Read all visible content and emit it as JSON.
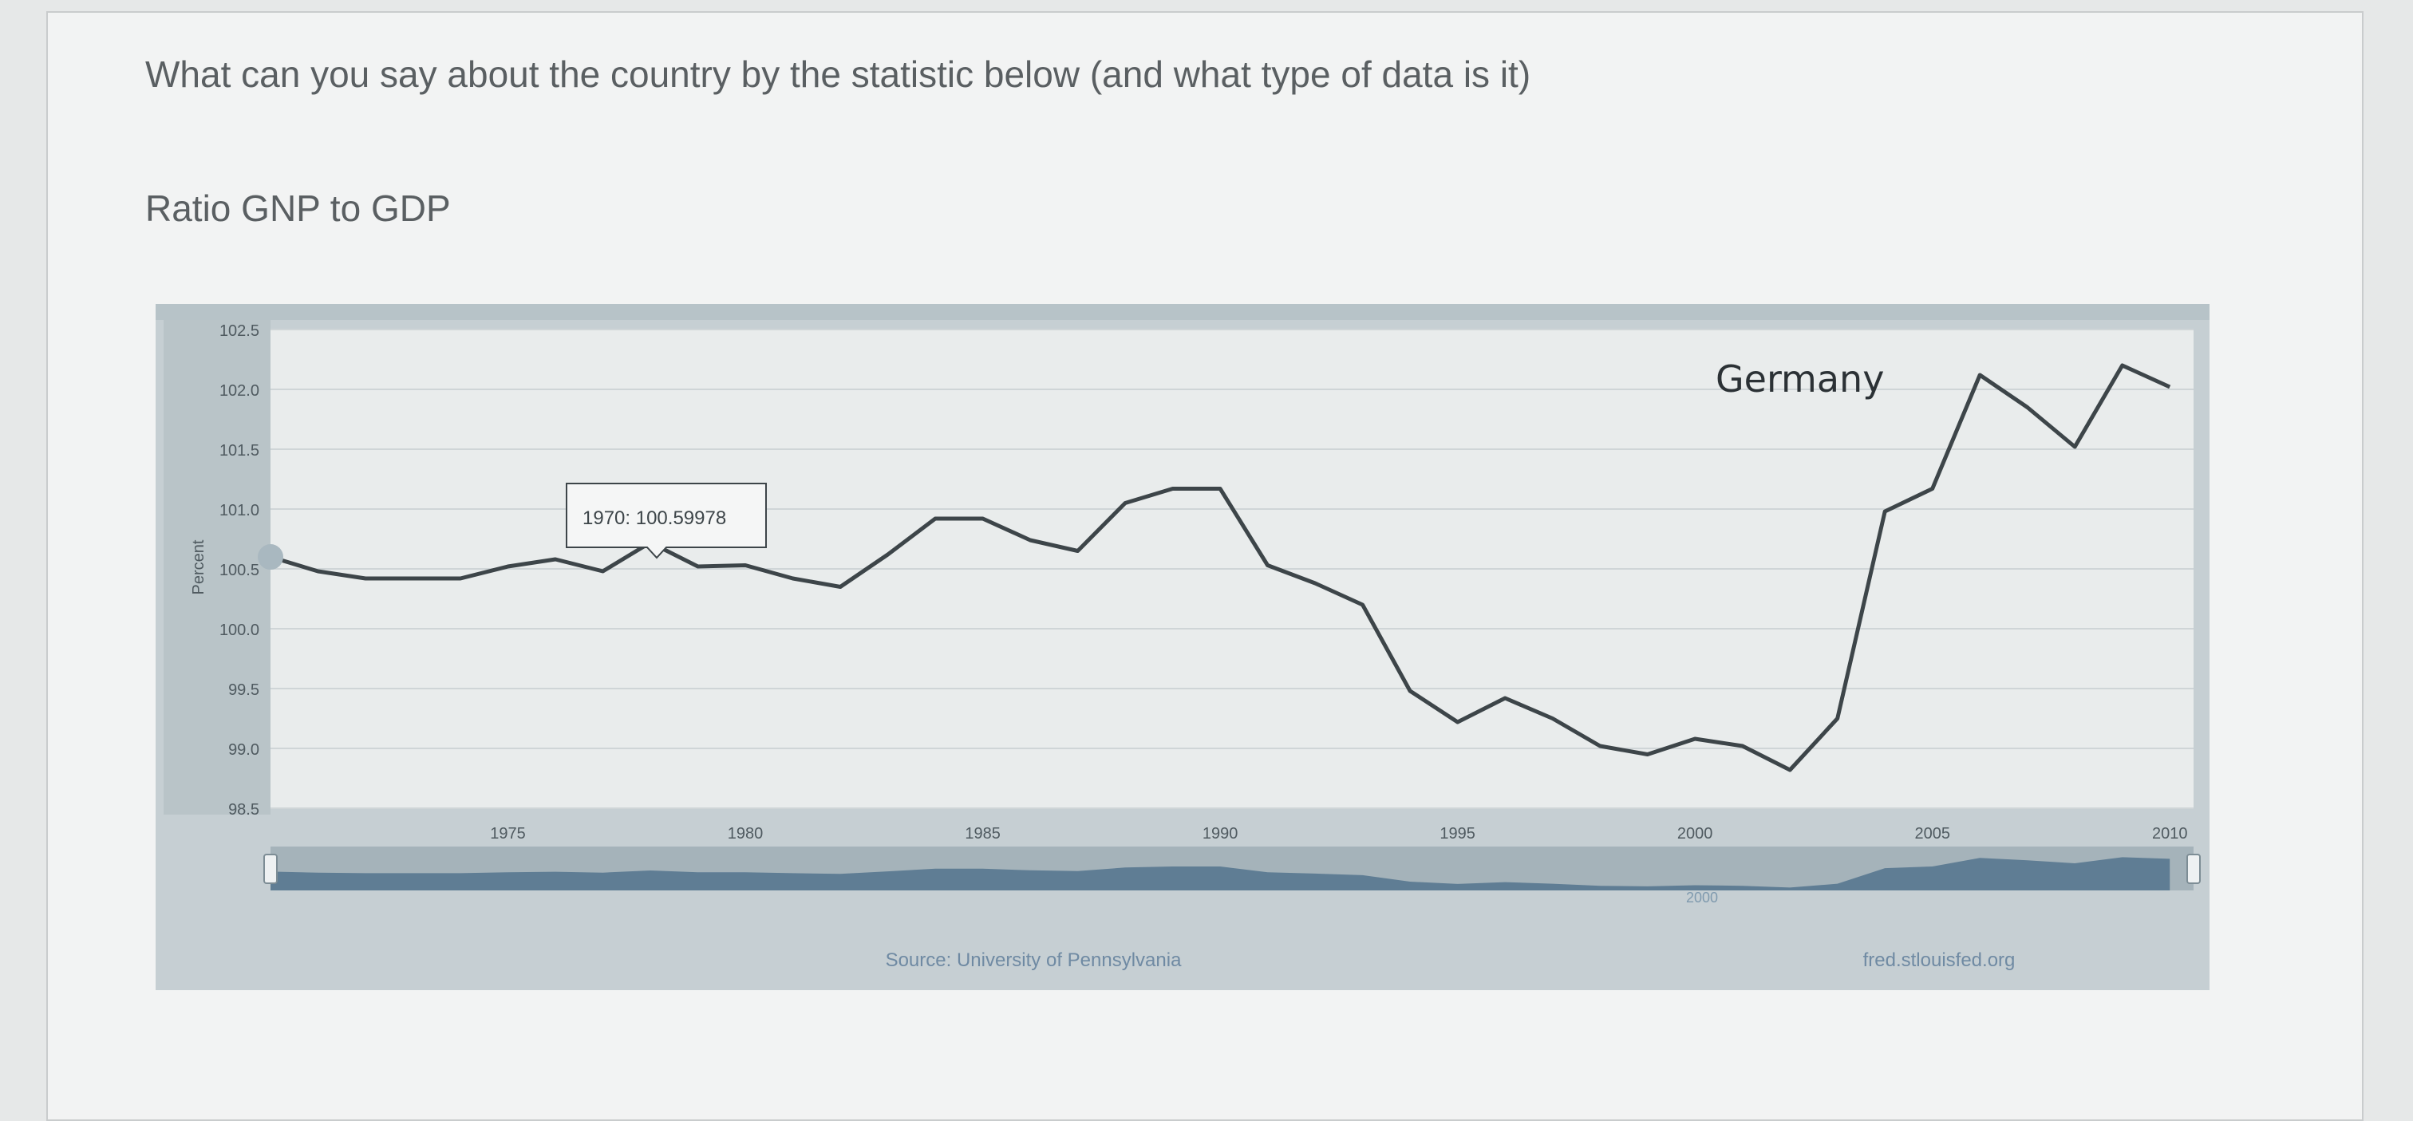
{
  "question": "What can you say about the country by the statistic below (and what type of data is it)",
  "chart_heading": "Ratio GNP to GDP",
  "chart_data": {
    "type": "line",
    "title": "",
    "country_label": "Germany",
    "ylabel": "Percent",
    "xlabel": "",
    "ylim": [
      98.5,
      102.5
    ],
    "xlim": [
      1970,
      2010.5
    ],
    "y_ticks": [
      "102.5",
      "102.0",
      "101.5",
      "101.0",
      "100.5",
      "100.0",
      "99.5",
      "99.0",
      "98.5"
    ],
    "x_ticks": [
      "1975",
      "1980",
      "1985",
      "1990",
      "1995",
      "2000",
      "2005",
      "2010"
    ],
    "grid": true,
    "tooltip": {
      "x": 1970,
      "y": 100.59978,
      "text": "1970: 100.59978"
    },
    "series": [
      {
        "x": [
          1970,
          1971,
          1972,
          1973,
          1974,
          1975,
          1976,
          1977,
          1978,
          1979,
          1980,
          1981,
          1982,
          1983,
          1984,
          1985,
          1986,
          1987,
          1988,
          1989,
          1990,
          1991,
          1992,
          1993,
          1994,
          1995,
          1996,
          1997,
          1998,
          1999,
          2000,
          2001,
          2002,
          2003,
          2004,
          2005,
          2006,
          2007,
          2008,
          2009,
          2010
        ],
        "y": [
          100.6,
          100.48,
          100.42,
          100.42,
          100.42,
          100.52,
          100.58,
          100.48,
          100.72,
          100.52,
          100.53,
          100.42,
          100.35,
          100.62,
          100.92,
          100.92,
          100.74,
          100.65,
          101.05,
          101.17,
          101.17,
          100.53,
          100.38,
          100.2,
          99.48,
          99.22,
          99.42,
          99.25,
          99.02,
          98.95,
          99.08,
          99.02,
          98.82,
          99.25,
          100.98,
          101.17,
          102.12,
          101.85,
          101.52,
          102.2,
          102.02
        ]
      }
    ],
    "source": "Source: University of Pennsylvania",
    "site": "fred.stlouisfed.org",
    "navigator_label": "2000"
  }
}
